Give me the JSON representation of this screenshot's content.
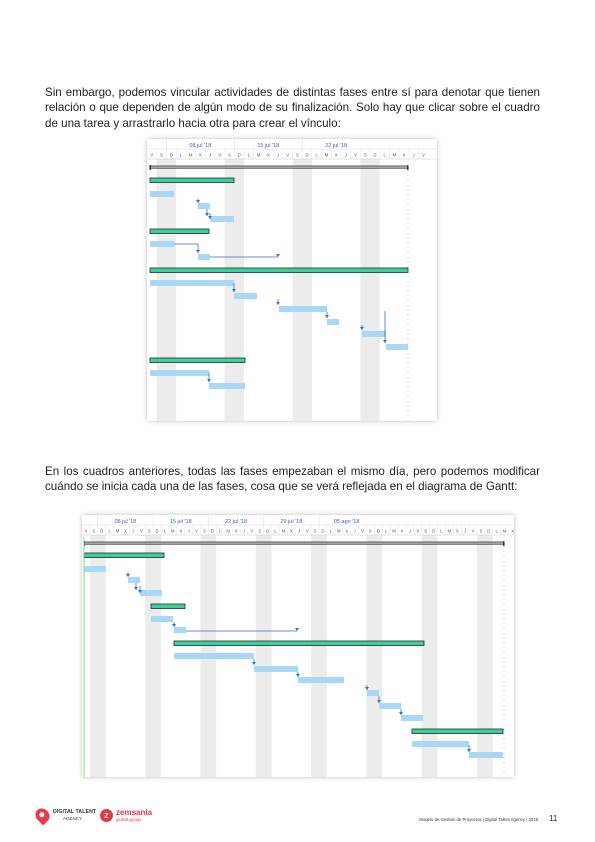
{
  "paragraph1": "Sin embargo, podemos vincular actividades de distintas fases entre sí para denotar que tienen relación o que dependen de algún modo de su finalización. Solo hay que clicar sobre el cuadro de una tarea y arrastrarlo hacia otra para crear el vínculo:",
  "paragraph2": "En los cuadros anteriores, todas las fases empezaban el mismo día, pero podemos modificar cuándo se inicia cada una de las fases, cosa que se verá reflejada en el diagrama de Gantt:",
  "gantt1": {
    "weeks": [
      "08 jul '18",
      "15 jul '18",
      "22 jul '18"
    ],
    "day_letters": [
      "V",
      "S",
      "D",
      "L",
      "M",
      "X",
      "J",
      "V",
      "S",
      "D",
      "L",
      "M",
      "X",
      "J",
      "V",
      "S",
      "D",
      "L",
      "M",
      "X",
      "J",
      "V",
      "S",
      "D",
      "L",
      "M",
      "X",
      "J",
      "V"
    ]
  },
  "gantt2": {
    "weeks": [
      "08 jul '18",
      "15 jul '18",
      "22 jul '18",
      "29 jul '18",
      "05 ago '18"
    ],
    "day_letters": [
      "V",
      "S",
      "D",
      "L",
      "M",
      "X",
      "J",
      "V",
      "S",
      "D",
      "L",
      "M",
      "X",
      "J",
      "V",
      "S",
      "D",
      "L",
      "M",
      "X",
      "J",
      "V",
      "S",
      "D",
      "L",
      "M",
      "X",
      "J",
      "V",
      "S",
      "D",
      "L",
      "M",
      "X",
      "J",
      "V",
      "S",
      "D",
      "L",
      "M",
      "X",
      "J",
      "V",
      "S",
      "D",
      "L",
      "M",
      "X",
      "J",
      "V",
      "S",
      "D",
      "L",
      "M",
      "X"
    ]
  },
  "colors": {
    "summary_bar": "#3ecf9a",
    "task_bar": "#a8d8f5",
    "link_line": "#2f6fd0",
    "weekend_shade": "#ececec"
  },
  "footer": {
    "logo1_line1": "DIGITAL TALENT",
    "logo1_line2": "AGENCY",
    "logo2_line1": "zemsania",
    "logo2_line2": "global group",
    "document_title": "Modelo de Gestión de Proyectos | Digital Talent Agency | 2018",
    "page_number": "11"
  }
}
